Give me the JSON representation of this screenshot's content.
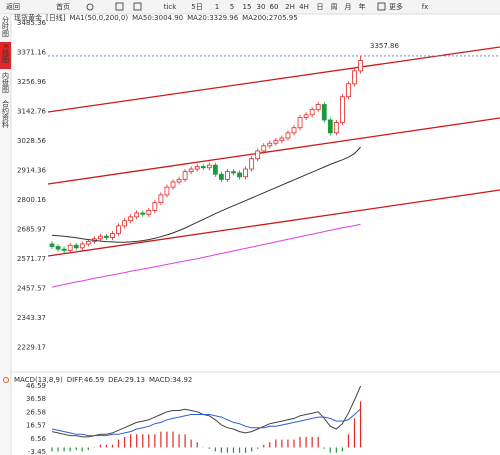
{
  "toolbar": {
    "items": [
      "返回",
      "首页",
      "tick",
      "5日",
      "1",
      "5",
      "15",
      "30",
      "60",
      "2H",
      "4H",
      "日",
      "周",
      "月",
      "年",
      "更多",
      "fx"
    ]
  },
  "sidebar": [
    "分时图",
    "K线图",
    "内盘图",
    "合约资料"
  ],
  "chart_data": [
    {
      "type": "candlestick",
      "title": "现货黄金",
      "period": "[日线]",
      "indicator": "MA1(50,0,200,0)",
      "extra_legend": "MA20:3329.96",
      "ylim": [
        2142.1,
        3512.5
      ],
      "yticks": [
        3485.36,
        3371.16,
        3256.96,
        3142.76,
        3028.56,
        2914.36,
        2800.16,
        2685.97,
        2571.77,
        2457.57,
        2343.37,
        2229.17
      ],
      "grid": false,
      "up_color": "#e02828",
      "down_color": "#1a9a3a",
      "max_value": 3357.86,
      "open": [
        2630,
        2620,
        2610,
        2605,
        2625,
        2615,
        2630,
        2640,
        2650,
        2660,
        2655,
        2670,
        2700,
        2720,
        2735,
        2750,
        2745,
        2760,
        2790,
        2820,
        2850,
        2870,
        2880,
        2910,
        2920,
        2930,
        2925,
        2935,
        2900,
        2880,
        2910,
        2905,
        2890,
        2920,
        2960,
        2990,
        3010,
        3020,
        3030,
        3040,
        3060,
        3080,
        3120,
        3130,
        3150,
        3170,
        3110,
        3060,
        3100,
        3200,
        3250,
        3300
      ],
      "high": [
        2640,
        2630,
        2620,
        2635,
        2635,
        2640,
        2650,
        2660,
        2670,
        2670,
        2680,
        2710,
        2730,
        2745,
        2760,
        2760,
        2770,
        2800,
        2830,
        2860,
        2880,
        2890,
        2920,
        2930,
        2940,
        2940,
        2945,
        2945,
        2910,
        2920,
        2920,
        2915,
        2930,
        2970,
        3000,
        3020,
        3030,
        3040,
        3050,
        3070,
        3090,
        3130,
        3140,
        3160,
        3180,
        3180,
        3120,
        3110,
        3210,
        3260,
        3310,
        3357.86
      ],
      "low": [
        2610,
        2600,
        2595,
        2595,
        2605,
        2605,
        2620,
        2630,
        2640,
        2645,
        2645,
        2660,
        2690,
        2710,
        2725,
        2735,
        2735,
        2750,
        2780,
        2810,
        2840,
        2860,
        2870,
        2900,
        2910,
        2915,
        2915,
        2890,
        2870,
        2870,
        2895,
        2880,
        2880,
        2910,
        2950,
        2980,
        3000,
        3010,
        3020,
        3030,
        3050,
        3070,
        3110,
        3120,
        3140,
        3100,
        3050,
        3050,
        3090,
        3190,
        3240,
        3290
      ],
      "close": [
        2620,
        2610,
        2605,
        2625,
        2615,
        2630,
        2640,
        2650,
        2660,
        2655,
        2670,
        2700,
        2720,
        2735,
        2750,
        2745,
        2760,
        2790,
        2820,
        2850,
        2870,
        2880,
        2910,
        2920,
        2930,
        2925,
        2935,
        2900,
        2880,
        2910,
        2905,
        2890,
        2920,
        2960,
        2990,
        3010,
        3020,
        3030,
        3040,
        3060,
        3080,
        3120,
        3130,
        3150,
        3170,
        3110,
        3060,
        3100,
        3200,
        3250,
        3300,
        3340
      ],
      "series": [
        {
          "name": "MA50:3004.90",
          "color": "#333333",
          "values": [
            2664,
            2662,
            2660,
            2657,
            2654,
            2650,
            2647,
            2644,
            2641,
            2639,
            2638,
            2637,
            2637,
            2638,
            2640,
            2643,
            2647,
            2652,
            2658,
            2665,
            2673,
            2682,
            2692,
            2703,
            2714,
            2725,
            2736,
            2747,
            2758,
            2768,
            2778,
            2788,
            2798,
            2808,
            2818,
            2828,
            2838,
            2848,
            2858,
            2868,
            2878,
            2888,
            2898,
            2908,
            2918,
            2928,
            2938,
            2947,
            2956,
            2966,
            2980,
            3004.9
          ]
        },
        {
          "name": "MA200:2705.95",
          "color": "#e040e0",
          "values": [
            2463,
            2468,
            2473,
            2478,
            2483,
            2487,
            2492,
            2497,
            2501,
            2506,
            2510,
            2515,
            2519,
            2524,
            2528,
            2533,
            2537,
            2542,
            2546,
            2551,
            2555,
            2560,
            2564,
            2569,
            2573,
            2578,
            2583,
            2588,
            2593,
            2598,
            2603,
            2608,
            2613,
            2618,
            2623,
            2628,
            2633,
            2638,
            2643,
            2648,
            2653,
            2658,
            2663,
            2668,
            2673,
            2678,
            2683,
            2688,
            2693,
            2697,
            2701,
            2705.95
          ]
        }
      ]
    },
    {
      "type": "macd",
      "title": "MACD(13,8,9)",
      "ylim": [
        -5.72,
        52.65
      ],
      "yticks": [
        46.59,
        36.58,
        26.58,
        16.57,
        6.56,
        -3.45
      ],
      "series": [
        {
          "name": "DIFF:46.59",
          "color": "#444444",
          "values": [
            12,
            11,
            10,
            9,
            9,
            8,
            8,
            9,
            10,
            10,
            11,
            13,
            15,
            17,
            19,
            20,
            21,
            23,
            25,
            27,
            28,
            28,
            29,
            28,
            27,
            25,
            24,
            21,
            17,
            15,
            14,
            12,
            11,
            12,
            14,
            16,
            18,
            19,
            20,
            21,
            22,
            24,
            25,
            26,
            27,
            22,
            16,
            14,
            18,
            26,
            36,
            46.59
          ]
        },
        {
          "name": "DEA:29.13",
          "color": "#3060d0",
          "values": [
            14,
            13,
            12,
            11,
            10,
            10,
            9,
            9,
            9,
            9,
            10,
            10,
            11,
            12,
            14,
            15,
            16,
            18,
            19,
            21,
            22,
            23,
            24,
            25,
            25,
            25,
            25,
            24,
            23,
            21,
            19,
            18,
            16,
            15,
            15,
            15,
            16,
            16,
            17,
            18,
            19,
            20,
            21,
            22,
            23,
            23,
            22,
            20,
            20,
            21,
            25,
            29.13
          ]
        },
        {
          "name": "MACD:34.92",
          "color": "#d020d0",
          "bars": true,
          "values": [
            -3,
            -3,
            -3,
            -3,
            -2,
            -3,
            -2,
            0,
            2,
            2,
            2,
            6,
            8,
            10,
            10,
            10,
            10,
            10,
            12,
            12,
            12,
            10,
            10,
            6,
            4,
            0,
            -1,
            -3,
            -4,
            -4,
            -4,
            -4,
            -4,
            -3,
            -1,
            2,
            4,
            6,
            6,
            6,
            6,
            8,
            8,
            8,
            8,
            -1,
            -4,
            -4,
            -3,
            10,
            22,
            34.92
          ]
        }
      ]
    }
  ]
}
